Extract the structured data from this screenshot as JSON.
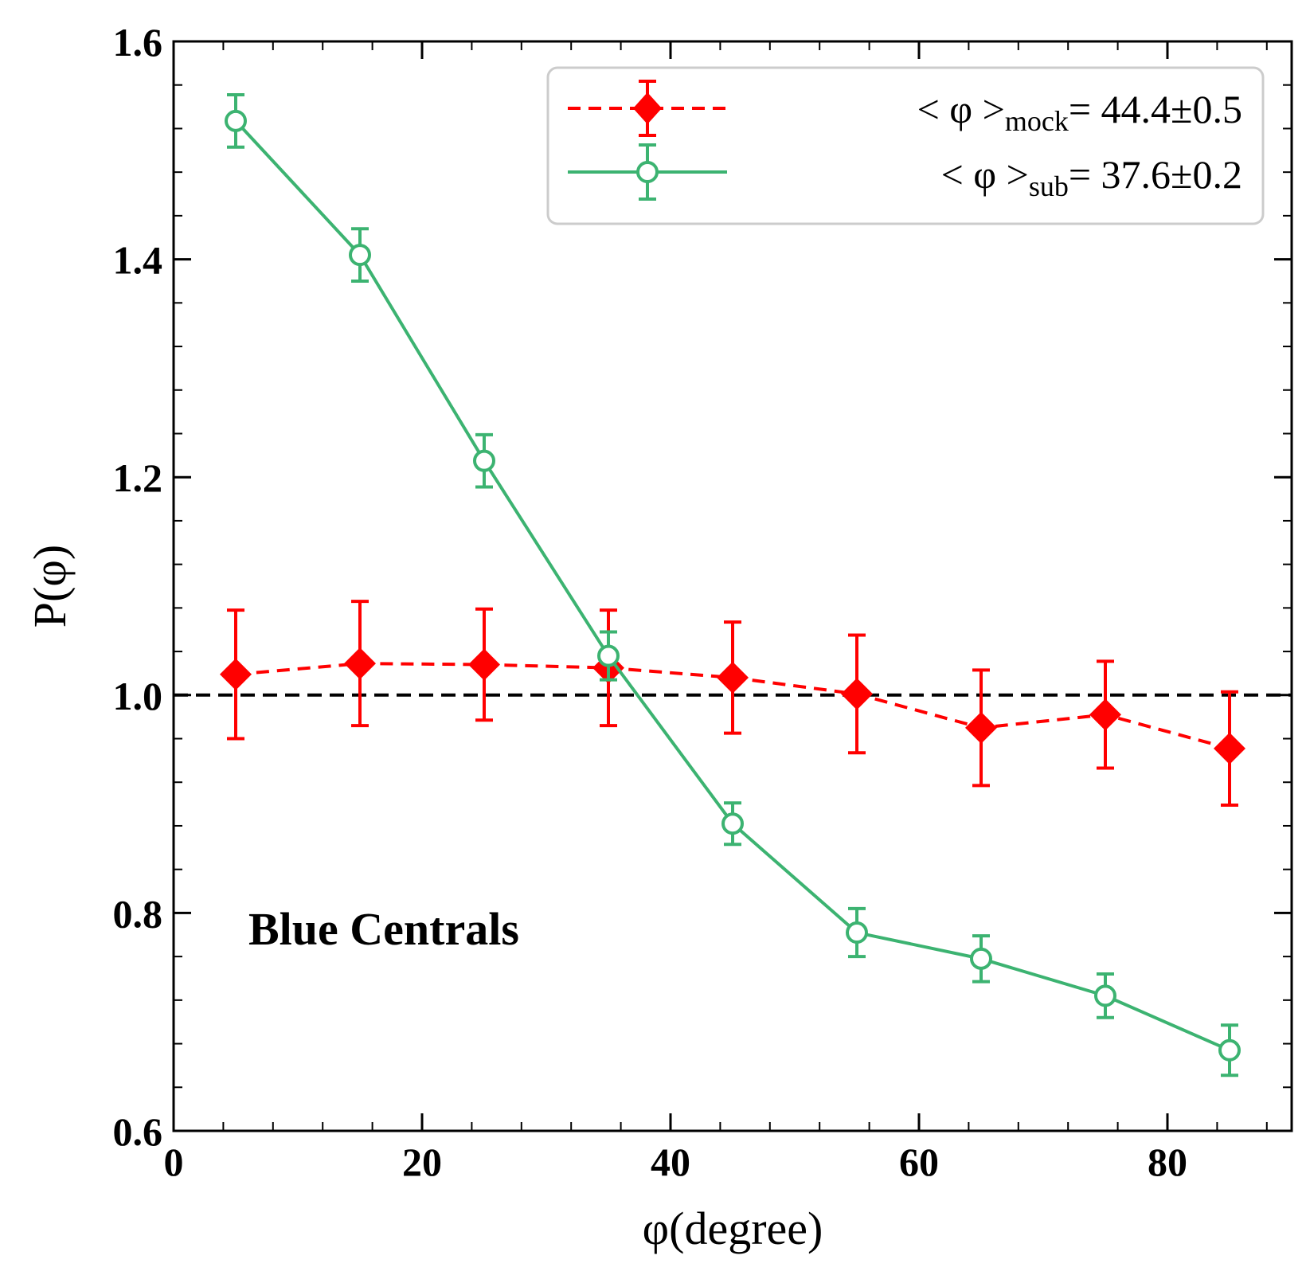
{
  "chart_data": {
    "type": "line",
    "x": [
      5,
      15,
      25,
      35,
      45,
      55,
      65,
      75,
      85
    ],
    "xlabel": "φ(degree)",
    "ylabel": "P(φ)",
    "xlim": [
      0,
      90
    ],
    "ylim": [
      0.6,
      1.6
    ],
    "xticks": [
      0,
      20,
      40,
      60,
      80
    ],
    "xtick_labels": [
      "0",
      "20",
      "40",
      "60",
      "80"
    ],
    "yticks": [
      0.6,
      0.8,
      1.0,
      1.2,
      1.4,
      1.6
    ],
    "ytick_labels": [
      "0.6",
      "0.8",
      "1.0",
      "1.2",
      "1.4",
      "1.6"
    ],
    "reference_line": {
      "y": 1.0,
      "style": "dashed",
      "color": "#000000"
    },
    "annotation": "Blue Centrals",
    "series": [
      {
        "name": "mock",
        "legend_prefix": "< φ >",
        "legend_sub": "mock",
        "legend_value": "= 44.4",
        "legend_pm": "±",
        "legend_err": "0.5",
        "color": "#ff0000",
        "linestyle": "dashed",
        "marker": "filled-diamond",
        "values": [
          1.019,
          1.029,
          1.028,
          1.025,
          1.016,
          1.001,
          0.97,
          0.982,
          0.951
        ],
        "errors": [
          0.059,
          0.057,
          0.051,
          0.053,
          0.051,
          0.054,
          0.053,
          0.049,
          0.052
        ]
      },
      {
        "name": "sub",
        "legend_prefix": "< φ >",
        "legend_sub": "sub",
        "legend_value": "= 37.6",
        "legend_pm": "±",
        "legend_err": "0.2",
        "color": "#3cb371",
        "linestyle": "solid",
        "marker": "open-circle",
        "values": [
          1.527,
          1.404,
          1.215,
          1.036,
          0.882,
          0.782,
          0.758,
          0.724,
          0.674
        ],
        "errors": [
          0.024,
          0.024,
          0.024,
          0.022,
          0.019,
          0.022,
          0.021,
          0.02,
          0.023
        ]
      }
    ]
  }
}
